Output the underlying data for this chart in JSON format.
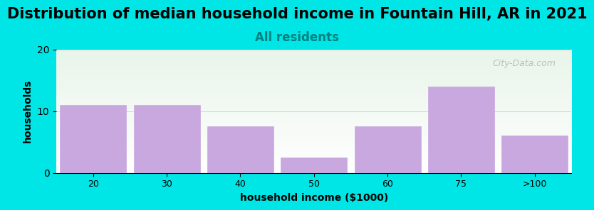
{
  "title": "Distribution of median household income in Fountain Hill, AR in 2021",
  "subtitle": "All residents",
  "xlabel": "household income ($1000)",
  "ylabel": "households",
  "categories": [
    "20",
    "30",
    "40",
    "50",
    "60",
    "75",
    ">100"
  ],
  "values": [
    11,
    11,
    7.5,
    2.5,
    7.5,
    14,
    6
  ],
  "bar_color": "#c9a8e0",
  "bar_edgecolor": "#c9a8e0",
  "bg_color": "#00e5e5",
  "plot_bg_top": "#e8f5e9",
  "plot_bg_bottom": "#ffffff",
  "ylim": [
    0,
    20
  ],
  "yticks": [
    0,
    10,
    20
  ],
  "title_fontsize": 15,
  "subtitle_fontsize": 12,
  "subtitle_color": "#008080",
  "axis_label_fontsize": 10,
  "watermark": "City-Data.com"
}
